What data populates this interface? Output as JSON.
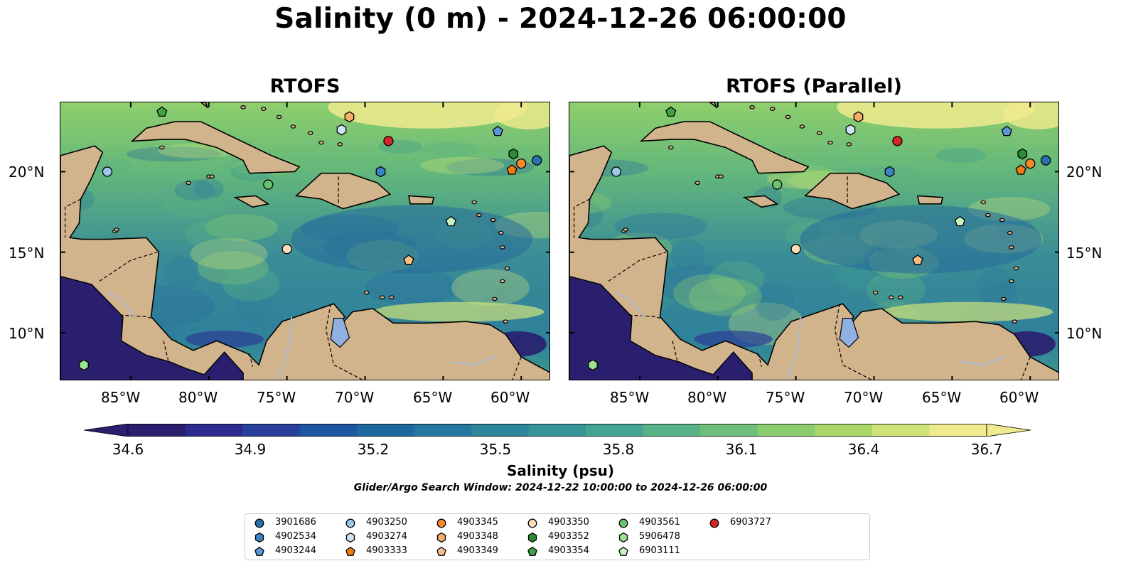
{
  "title": "Salinity (0 m) - 2024-12-26 06:00:00",
  "panels": [
    {
      "title": "RTOFS"
    },
    {
      "title": "RTOFS (Parallel)"
    }
  ],
  "lat_labels": [
    "20°N",
    "15°N",
    "10°N"
  ],
  "lon_labels": [
    "85°W",
    "80°W",
    "75°W",
    "70°W",
    "65°W",
    "60°W"
  ],
  "colorbar": {
    "ticks": [
      "34.6",
      "34.9",
      "35.2",
      "35.5",
      "35.8",
      "36.1",
      "36.4",
      "36.7"
    ],
    "label": "Salinity (psu)",
    "colors": [
      "#2a1e6e",
      "#2d2b8f",
      "#28409c",
      "#1f55a0",
      "#1e68a0",
      "#24789f",
      "#2d869c",
      "#37959a",
      "#44a493",
      "#57b288",
      "#6fbf7c",
      "#8bcc6f",
      "#a9d768",
      "#cde277",
      "#f0ea8e"
    ]
  },
  "search_window": "Glider/Argo Search Window: 2024-12-22 10:00:00 to 2024-12-26 06:00:00",
  "floats": [
    {
      "id": "3901686",
      "shape": "circle",
      "color": "#2f6fb1",
      "lon": -59.0,
      "lat": 20.7
    },
    {
      "id": "4902534",
      "shape": "hexagon",
      "color": "#3e82c6",
      "lon": -69.0,
      "lat": 20.0
    },
    {
      "id": "4903244",
      "shape": "pentagon",
      "color": "#5a97d6",
      "lon": -61.5,
      "lat": 22.5
    },
    {
      "id": "4903250",
      "shape": "circle",
      "color": "#9cc8ea",
      "lon": -86.5,
      "lat": 20.0
    },
    {
      "id": "4903274",
      "shape": "hexagon",
      "color": "#cfe5f6",
      "lon": -71.5,
      "lat": 22.6
    },
    {
      "id": "4903333",
      "shape": "pentagon",
      "color": "#f07c10",
      "lon": -60.6,
      "lat": 20.1
    },
    {
      "id": "4903345",
      "shape": "circle",
      "color": "#f68a2d",
      "lon": -60.0,
      "lat": 20.5
    },
    {
      "id": "4903348",
      "shape": "hexagon",
      "color": "#f5ad6a",
      "lon": -71.0,
      "lat": 23.4
    },
    {
      "id": "4903349",
      "shape": "pentagon",
      "color": "#f6c089",
      "lon": -67.2,
      "lat": 14.5
    },
    {
      "id": "4903350",
      "shape": "circle",
      "color": "#fbdcb8",
      "lon": -75.0,
      "lat": 15.2
    },
    {
      "id": "4903352",
      "shape": "hexagon",
      "color": "#2e8b35",
      "lon": -60.5,
      "lat": 21.1
    },
    {
      "id": "4903354",
      "shape": "pentagon",
      "color": "#3fa046",
      "lon": -83.0,
      "lat": 23.7
    },
    {
      "id": "4903561",
      "shape": "circle",
      "color": "#6cc36f",
      "lon": -76.2,
      "lat": 19.2
    },
    {
      "id": "5906478",
      "shape": "hexagon",
      "color": "#9ae38f",
      "lon": -88.0,
      "lat": 8.0
    },
    {
      "id": "6903111",
      "shape": "pentagon",
      "color": "#c9f2c3",
      "lon": -64.5,
      "lat": 16.9
    },
    {
      "id": "6903727",
      "shape": "circle",
      "color": "#d62728",
      "lon": -68.5,
      "lat": 21.9
    }
  ]
}
